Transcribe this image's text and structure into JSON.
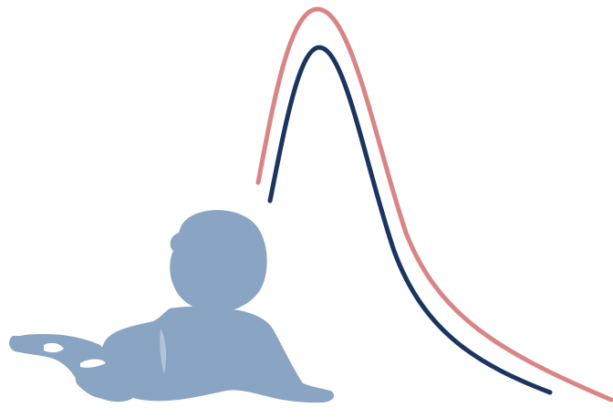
{
  "illustration": {
    "subject": "baby-silhouette-with-curves",
    "colors": {
      "baby": "#8aa4c4",
      "baby_highlight": "#ffffff",
      "upper_curve": "#d98585",
      "lower_curve": "#1b3560",
      "background": "#ffffff"
    },
    "icons": [
      "baby-silhouette-icon",
      "upper-curve",
      "lower-curve"
    ]
  }
}
